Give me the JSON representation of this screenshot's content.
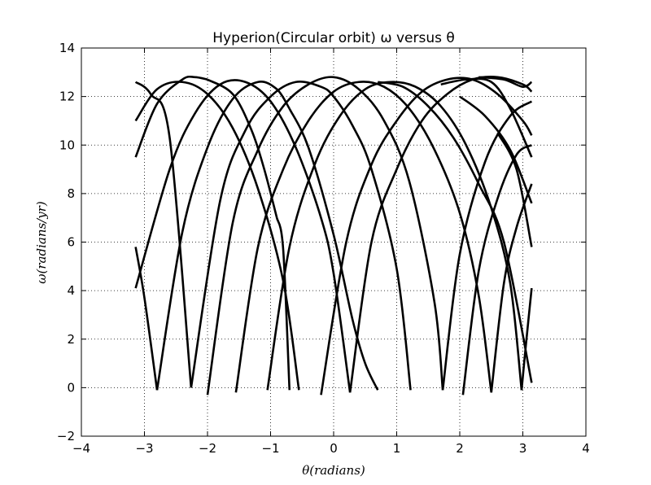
{
  "chart_data": {
    "type": "line",
    "title": "Hyperion(Circular orbit) ω versus θ",
    "xlabel": "θ(radians)",
    "ylabel": "ω(radians/yr)",
    "xlim": [
      -4,
      4
    ],
    "ylim": [
      -2,
      14
    ],
    "xticks": [
      -4,
      -3,
      -2,
      -1,
      0,
      1,
      2,
      3,
      4
    ],
    "yticks": [
      -2,
      0,
      2,
      4,
      6,
      8,
      10,
      12,
      14
    ],
    "xtick_labels": [
      "−4",
      "−3",
      "−2",
      "−1",
      "0",
      "1",
      "2",
      "3",
      "4"
    ],
    "ytick_labels": [
      "−2",
      "0",
      "2",
      "4",
      "6",
      "8",
      "10",
      "12",
      "14"
    ],
    "grid": true,
    "series_color": "#000000",
    "series": [
      {
        "x": [
          -3.14,
          -2.6,
          -2.2,
          -1.8,
          -1.4,
          -1.0,
          -0.6,
          -0.2,
          0.0,
          0.26
        ],
        "y": [
          4.1,
          9.0,
          11.3,
          12.5,
          12.6,
          11.8,
          9.9,
          7.0,
          4.7,
          -0.2
        ]
      },
      {
        "x": [
          -3.14,
          -2.8,
          -2.4,
          -2.0,
          -1.6,
          -1.2,
          -0.8,
          -0.55
        ],
        "y": [
          11.0,
          12.3,
          12.6,
          12.1,
          10.7,
          8.2,
          4.4,
          -0.1
        ]
      },
      {
        "x": [
          -3.14,
          -2.9,
          -2.6,
          -2.26
        ],
        "y": [
          12.6,
          12.1,
          10.3,
          0.0
        ]
      },
      {
        "x": [
          -3.14,
          -3.0,
          -2.8
        ],
        "y": [
          5.8,
          3.7,
          -0.1
        ]
      },
      {
        "x": [
          -2.8,
          -2.4,
          -2.0,
          -1.6,
          -1.2,
          -0.9,
          -0.7
        ],
        "y": [
          -0.1,
          6.4,
          9.9,
          11.9,
          12.6,
          12.3,
          11.5
        ]
      },
      {
        "x": [
          -0.7,
          -0.4,
          0.0,
          0.3,
          0.5,
          0.7
        ],
        "y": [
          11.5,
          9.9,
          6.3,
          2.8,
          1.0,
          -0.1
        ]
      },
      {
        "x": [
          -3.14,
          -2.8,
          -2.4,
          -2.2,
          -2.0
        ],
        "y": [
          9.5,
          11.7,
          12.7,
          12.8,
          12.7
        ]
      },
      {
        "x": [
          -2.0,
          -1.6,
          -1.3,
          -1.1,
          -0.9
        ],
        "y": [
          12.7,
          12.1,
          10.6,
          9.0,
          7.0
        ]
      },
      {
        "x": [
          -0.9,
          -0.8,
          -0.7
        ],
        "y": [
          7.0,
          5.7,
          -0.1
        ]
      },
      {
        "x": [
          -2.26,
          -1.8,
          -1.4,
          -1.0,
          -0.6,
          -0.2,
          0.0,
          0.3,
          0.6,
          1.0,
          1.22
        ],
        "y": [
          0.0,
          7.7,
          10.6,
          12.0,
          12.6,
          12.4,
          12.0,
          10.8,
          9.0,
          4.9,
          -0.1
        ]
      },
      {
        "x": [
          -2.0,
          -1.6,
          -1.2,
          -0.8,
          -0.4,
          0.0,
          0.4,
          0.8,
          1.2,
          1.6,
          1.73
        ],
        "y": [
          -0.3,
          6.8,
          9.8,
          11.6,
          12.5,
          12.8,
          12.3,
          11.0,
          8.5,
          3.5,
          -0.1
        ]
      },
      {
        "x": [
          -1.55,
          -1.2,
          -0.8,
          -0.4,
          0.0,
          0.4,
          0.8,
          1.2,
          1.6,
          2.0,
          2.3,
          2.5
        ],
        "y": [
          -0.2,
          5.8,
          9.0,
          11.0,
          12.2,
          12.6,
          12.4,
          11.5,
          9.8,
          7.2,
          3.8,
          -0.2
        ]
      },
      {
        "x": [
          -1.05,
          -0.7,
          -0.3,
          0.1,
          0.5,
          0.9,
          1.3,
          1.7,
          2.1,
          2.5,
          2.8,
          2.98
        ],
        "y": [
          -0.1,
          5.8,
          9.2,
          11.2,
          12.3,
          12.6,
          12.4,
          11.6,
          10.0,
          7.4,
          4.3,
          -0.1
        ]
      },
      {
        "x": [
          -0.2,
          0.2,
          0.6,
          1.0,
          1.4,
          1.8,
          2.2,
          2.6,
          3.0,
          3.14
        ],
        "y": [
          -0.3,
          6.0,
          9.2,
          11.0,
          12.2,
          12.7,
          12.7,
          12.1,
          11.0,
          10.4
        ]
      },
      {
        "x": [
          0.26,
          0.6,
          1.0,
          1.4,
          1.8,
          2.2,
          2.6,
          3.0,
          3.14
        ],
        "y": [
          -0.2,
          6.0,
          9.0,
          11.0,
          12.1,
          12.7,
          12.8,
          12.5,
          12.2
        ]
      },
      {
        "x": [
          1.73,
          2.0,
          2.4,
          2.8,
          3.14
        ],
        "y": [
          -0.1,
          5.5,
          9.3,
          11.2,
          11.8
        ]
      },
      {
        "x": [
          2.05,
          2.3,
          2.6,
          2.9,
          3.14
        ],
        "y": [
          -0.3,
          4.8,
          7.8,
          9.6,
          10.0
        ]
      },
      {
        "x": [
          2.5,
          2.7,
          2.9,
          3.14
        ],
        "y": [
          -0.2,
          4.3,
          6.6,
          8.4
        ]
      },
      {
        "x": [
          2.98,
          3.05,
          3.14
        ],
        "y": [
          -0.1,
          1.8,
          4.1
        ]
      },
      {
        "x": [
          1.7,
          2.1,
          2.5,
          2.8,
          3.14
        ],
        "y": [
          12.5,
          12.7,
          12.6,
          11.5,
          9.5
        ]
      },
      {
        "x": [
          0.7,
          1.1,
          1.5,
          1.9,
          2.3,
          2.7,
          3.14
        ],
        "y": [
          12.6,
          12.4,
          11.6,
          10.3,
          8.4,
          6.0,
          0.2
        ]
      },
      {
        "x": [
          2.3,
          2.7,
          3.0,
          3.14
        ],
        "y": [
          12.8,
          12.7,
          12.4,
          12.6
        ]
      },
      {
        "x": [
          2.0,
          2.4,
          2.8,
          3.14
        ],
        "y": [
          12.0,
          11.2,
          9.8,
          7.6
        ]
      },
      {
        "x": [
          2.6,
          2.9,
          3.14
        ],
        "y": [
          10.5,
          9.0,
          5.8
        ]
      }
    ]
  }
}
